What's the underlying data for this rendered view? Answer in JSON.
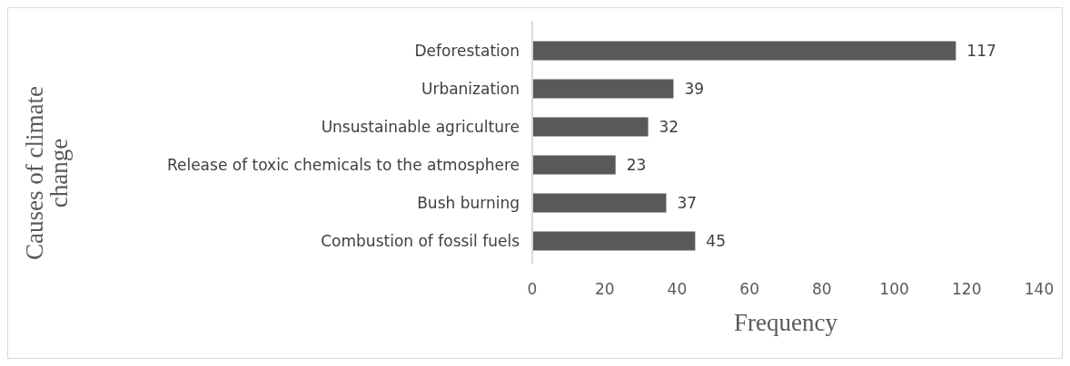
{
  "chart_data": {
    "type": "bar",
    "orientation": "horizontal",
    "xlabel": "Frequency",
    "ylabel": "Causes of climate change",
    "categories": [
      "Deforestation",
      "Urbanization",
      "Unsustainable agriculture",
      "Release of toxic chemicals to the atmosphere",
      "Bush burning",
      "Combustion of fossil fuels"
    ],
    "values": [
      117,
      39,
      32,
      23,
      37,
      45
    ],
    "color": "#595959",
    "data_labels": true,
    "xlim": [
      0,
      140
    ],
    "xticks": [
      0,
      20,
      40,
      60,
      80,
      100,
      120,
      140
    ],
    "grid": false
  }
}
